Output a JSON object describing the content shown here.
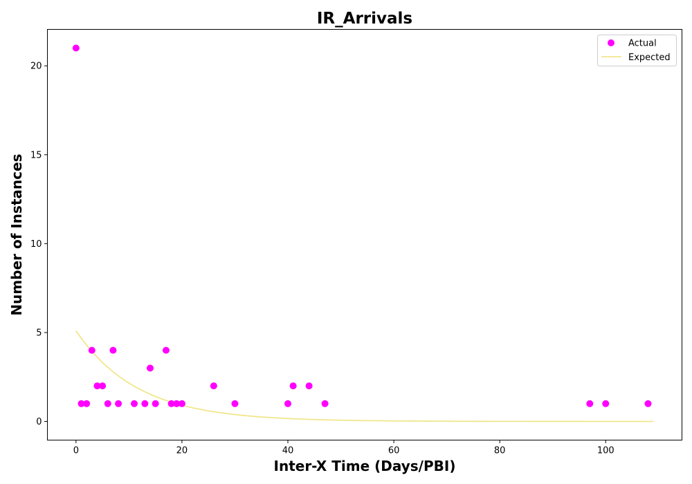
{
  "chart_data": {
    "type": "scatter",
    "title": "IR_Arrivals",
    "xlabel": "Inter-X Time (Days/PBI)",
    "ylabel": "Number of Instances",
    "xlim": [
      -5.4,
      114.4
    ],
    "ylim": [
      -1.05,
      22.05
    ],
    "xticks": [
      0,
      20,
      40,
      60,
      80,
      100
    ],
    "yticks": [
      0,
      5,
      10,
      15,
      20
    ],
    "grid": false,
    "legend_position": "top-right",
    "series": [
      {
        "name": "Actual",
        "kind": "scatter",
        "color": "#ff00ff",
        "x": [
          0,
          1,
          2,
          3,
          4,
          5,
          6,
          7,
          8,
          11,
          13,
          14,
          15,
          17,
          18,
          19,
          20,
          26,
          30,
          40,
          41,
          44,
          47,
          97,
          100,
          108
        ],
        "y": [
          21,
          1,
          1,
          4,
          2,
          2,
          1,
          4,
          1,
          1,
          1,
          3,
          1,
          4,
          1,
          1,
          1,
          2,
          1,
          1,
          2,
          2,
          1,
          1,
          1,
          1
        ]
      },
      {
        "name": "Expected",
        "kind": "line",
        "color": "#f0e68c",
        "model": "exponential",
        "amplitude": 5.1,
        "rate": 0.086,
        "x_range": [
          0,
          109
        ]
      }
    ]
  }
}
